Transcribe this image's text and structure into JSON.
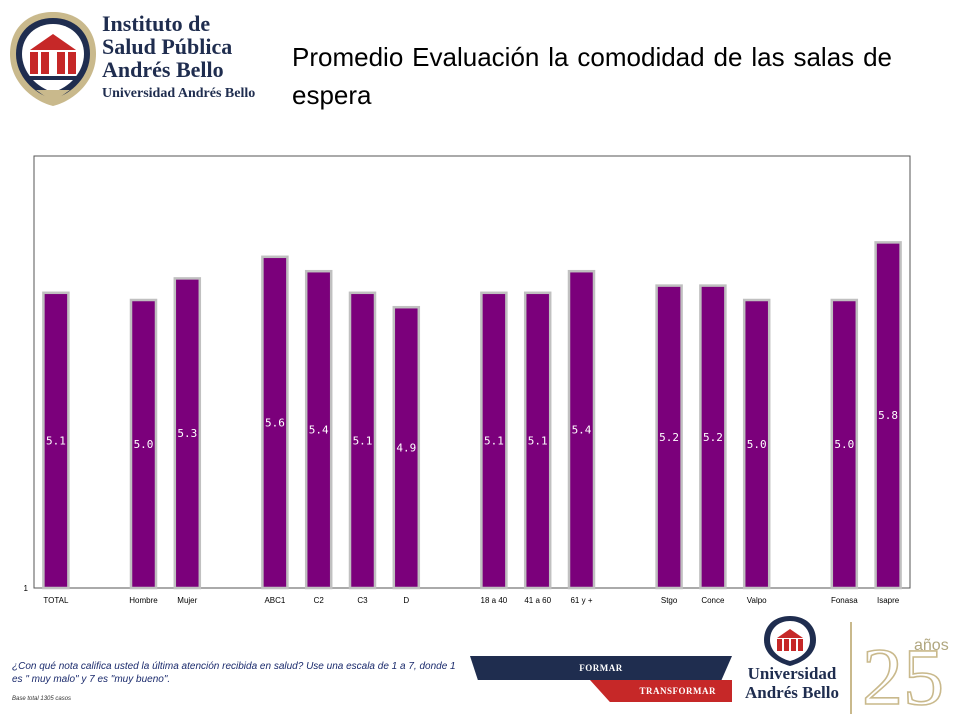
{
  "header": {
    "logo_line1": "Instituto de",
    "logo_line2": "Salud Pública",
    "logo_line3": "Andrés Bello",
    "logo_line4": "Universidad Andrés Bello",
    "title": "Promedio Evaluación la comodidad de las salas de espera"
  },
  "chart_data": {
    "type": "bar",
    "title": "Promedio Evaluación la comodidad de las salas de espera",
    "categories": [
      "TOTAL",
      "",
      "Hombre",
      "Mujer",
      "",
      "ABC1",
      "C2",
      "C3",
      "D",
      "",
      "18 a 40",
      "41 a 60",
      "61 y +",
      "",
      "Stgo",
      "Conce",
      "Valpo",
      "",
      "Fonasa",
      "Isapre"
    ],
    "values": [
      5.1,
      null,
      5.0,
      5.3,
      null,
      5.6,
      5.4,
      5.1,
      4.9,
      null,
      5.1,
      5.1,
      5.4,
      null,
      5.2,
      5.2,
      5.0,
      null,
      5.0,
      5.8
    ],
    "value_labels": [
      "5.1",
      "",
      "5.0",
      "5.3",
      "",
      "5.6",
      "5.4",
      "5.1",
      "4.9",
      "",
      "5.1",
      "5.1",
      "5.4",
      "",
      "5.2",
      "5.2",
      "5.0",
      "",
      "5.0",
      "5.8"
    ],
    "ylim": [
      1,
      7
    ],
    "ytick_labels": [
      "1"
    ],
    "bar_color": "#7b007b",
    "bar_outline_color": "#c0c0c0",
    "label_color": "#ffffff",
    "grid": false,
    "legend": "none"
  },
  "footer": {
    "question": "¿Con qué nota califica usted la última atención recibida en salud? Use una escala de 1 a 7, donde 1 es \" muy malo\" y 7 es \"muy bueno\".",
    "base": "Base total 1305  casos",
    "formar": "FORMAR",
    "transformar": "TRANSFORMAR",
    "university_line1": "Universidad",
    "university_line2": "Andrés Bello",
    "anniversary_number": "25",
    "anniversary_word": "años"
  },
  "colors": {
    "brand_navy": "#1f2d4f",
    "brand_red": "#c62828",
    "brand_gold": "#c9b98c"
  }
}
